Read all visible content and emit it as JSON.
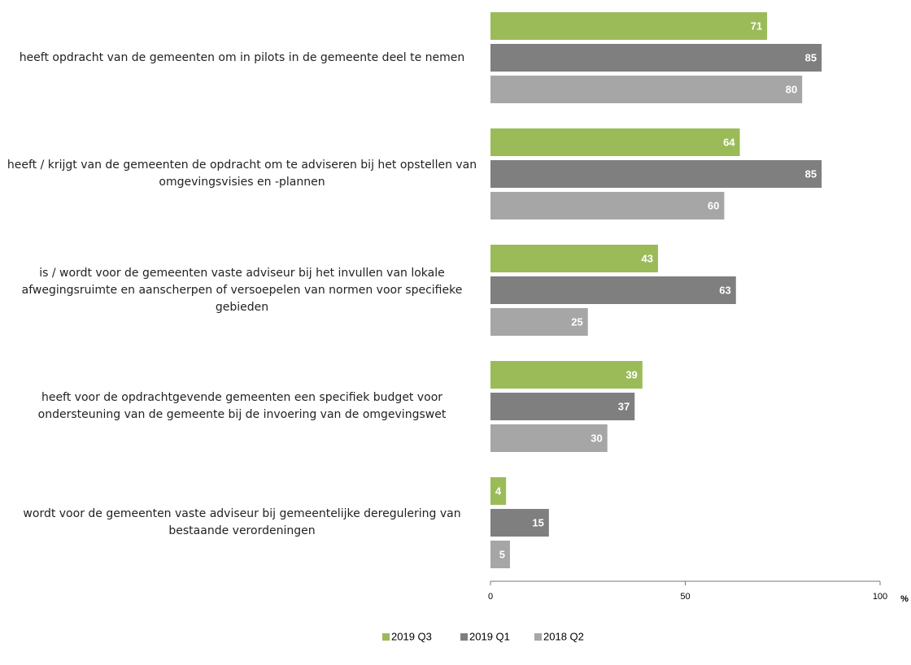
{
  "chart_data": {
    "type": "bar",
    "orientation": "horizontal",
    "categories": [
      "heeft opdracht van de gemeenten om in pilots in de gemeente deel te nemen",
      "heeft / krijgt van de gemeenten de opdracht om te adviseren bij het opstellen van omgevingsvisies en -plannen",
      "is / wordt voor de gemeenten vaste adviseur bij het invullen van lokale afwegingsruimte en aanscherpen of versoepelen van normen voor specifieke gebieden",
      "heeft voor de opdrachtgevende gemeenten een specifiek budget voor ondersteuning van de gemeente bij de invoering van de omgevingswet",
      "wordt voor de gemeenten vaste adviseur bij gemeentelijke deregulering van bestaande verordeningen"
    ],
    "series": [
      {
        "name": "2019 Q3",
        "color": "#9bbb59",
        "values": [
          71,
          64,
          43,
          39,
          4
        ]
      },
      {
        "name": "2019 Q1",
        "color": "#7f7f7f",
        "values": [
          85,
          85,
          63,
          37,
          15
        ]
      },
      {
        "name": "2018 Q2",
        "color": "#a6a6a6",
        "values": [
          80,
          60,
          25,
          30,
          5
        ]
      }
    ],
    "xlabel": "%",
    "xlim": [
      0,
      100
    ],
    "xticks": [
      0,
      50,
      100
    ],
    "legend": "bottom"
  }
}
